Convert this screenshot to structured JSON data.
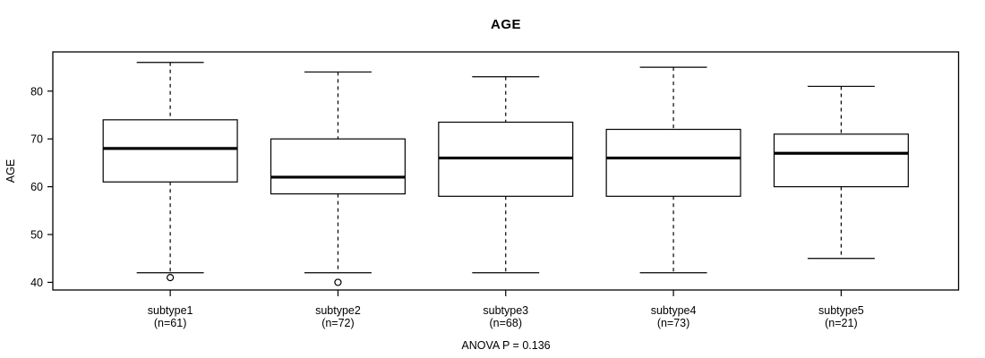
{
  "chart_data": {
    "type": "boxplot",
    "title": "AGE",
    "ylabel": "AGE",
    "annotation": "ANOVA P = 0.136",
    "ylim": [
      38.4,
      88.2
    ],
    "yticks": [
      40,
      50,
      60,
      70,
      80
    ],
    "grid": false,
    "colors": {
      "line": "#000000",
      "background": "#ffffff",
      "text": "#000000"
    },
    "groups": [
      {
        "label": "subtype1",
        "sub_label": "(n=61)",
        "n": 61,
        "whisker_low": 42,
        "q1": 61,
        "median": 68,
        "q3": 74,
        "whisker_high": 86,
        "outliers": [
          41
        ]
      },
      {
        "label": "subtype2",
        "sub_label": "(n=72)",
        "n": 72,
        "whisker_low": 42,
        "q1": 58.5,
        "median": 62,
        "q3": 70,
        "whisker_high": 84,
        "outliers": [
          40
        ]
      },
      {
        "label": "subtype3",
        "sub_label": "(n=68)",
        "n": 68,
        "whisker_low": 42,
        "q1": 58,
        "median": 66,
        "q3": 73.5,
        "whisker_high": 83,
        "outliers": []
      },
      {
        "label": "subtype4",
        "sub_label": "(n=73)",
        "n": 73,
        "whisker_low": 42,
        "q1": 58,
        "median": 66,
        "q3": 72,
        "whisker_high": 85,
        "outliers": []
      },
      {
        "label": "subtype5",
        "sub_label": "(n=21)",
        "n": 21,
        "whisker_low": 45,
        "q1": 60,
        "median": 67,
        "q3": 71,
        "whisker_high": 81,
        "outliers": []
      }
    ]
  }
}
